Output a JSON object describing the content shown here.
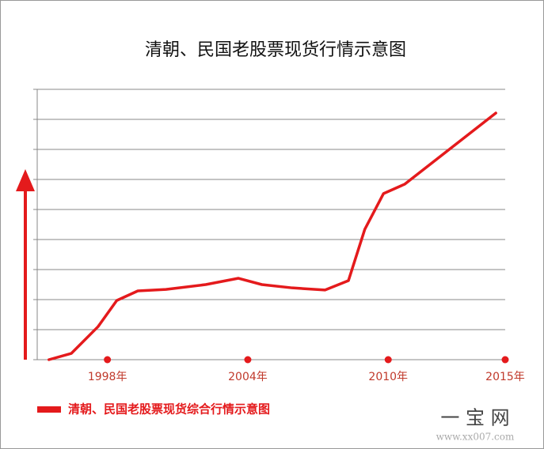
{
  "chart_data": {
    "type": "line",
    "title": "清朝、民国老股票现货行情示意图",
    "x": [
      1995.5,
      1996.46,
      1997.6,
      1998.4,
      1999.3,
      2000.5,
      2002.2,
      2003.6,
      2004.6,
      2005.9,
      2007.3,
      2008.3,
      2009.0,
      2009.8,
      2010.7,
      2014.6
    ],
    "series": [
      {
        "name": "清朝、民国老股票现货综合行情示意图",
        "color": "#e41a1c",
        "values": [
          0,
          0.21,
          1.1,
          1.97,
          2.29,
          2.34,
          2.5,
          2.71,
          2.5,
          2.39,
          2.32,
          2.63,
          4.34,
          5.53,
          5.84,
          8.21
        ]
      }
    ],
    "xlim": [
      1995,
      2015
    ],
    "xticks": [
      {
        "value": 1998,
        "label": "1998年"
      },
      {
        "value": 2004,
        "label": "2004年"
      },
      {
        "value": 2010,
        "label": "2010年"
      },
      {
        "value": 2015,
        "label": "2015年"
      }
    ],
    "ylim": [
      0,
      9
    ],
    "yticks": [
      0,
      1,
      2,
      3,
      4,
      5,
      6,
      7,
      8,
      9
    ],
    "ytick_labels": false,
    "grid": true,
    "legend": "bottom-left",
    "watermark": [
      "一 宝 网",
      "www.xx007.com"
    ]
  }
}
